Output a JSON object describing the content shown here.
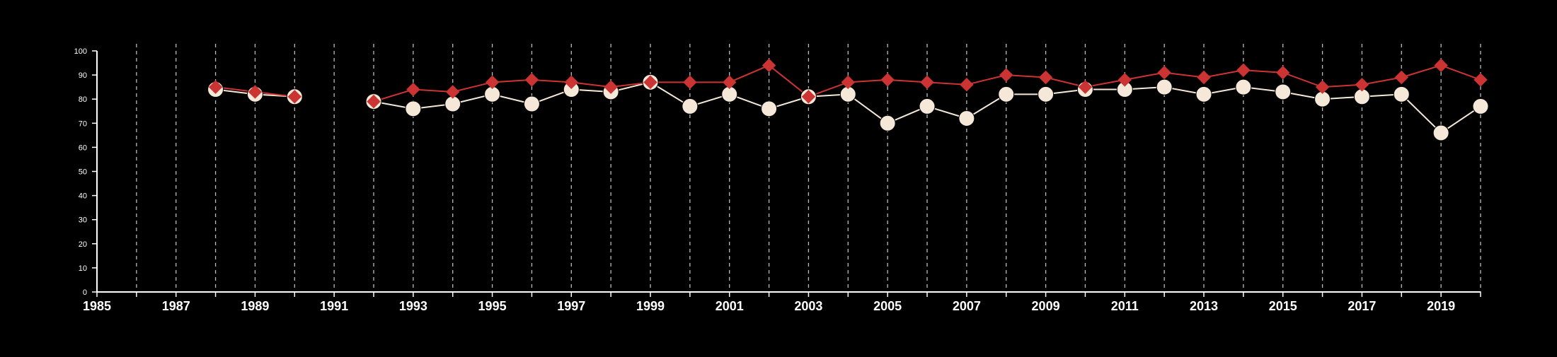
{
  "chart_data": {
    "type": "line",
    "title": "",
    "xlabel": "",
    "ylabel": "",
    "xlim": [
      1985,
      2020
    ],
    "ylim": [
      0,
      100
    ],
    "y_ticks": [
      0,
      10,
      20,
      30,
      40,
      50,
      60,
      70,
      80,
      90,
      100
    ],
    "x_tick_labels": [
      "1985",
      "1987",
      "1989",
      "1991",
      "1993",
      "1995",
      "1997",
      "1999",
      "2001",
      "2003",
      "2005",
      "2007",
      "2009",
      "2011",
      "2013",
      "2015",
      "2017",
      "2019"
    ],
    "grid": "vertical dashed lines at every year",
    "legend": "none",
    "colors": {
      "background": "#000000",
      "axis": "#ffffff",
      "grid": "#bbbbbb",
      "series_red": "#cc3333",
      "series_cream": "#f5e8d8"
    },
    "series": [
      {
        "marker": "circle",
        "color": "#f5e8d8",
        "segments": [
          [
            [
              1988,
              84
            ],
            [
              1989,
              82
            ],
            [
              1990,
              81
            ]
          ],
          [
            [
              1992,
              79
            ],
            [
              1993,
              76
            ],
            [
              1994,
              78
            ],
            [
              1995,
              82
            ],
            [
              1996,
              78
            ],
            [
              1997,
              84
            ],
            [
              1998,
              83
            ],
            [
              1999,
              87
            ],
            [
              2000,
              77
            ],
            [
              2001,
              82
            ],
            [
              2002,
              76
            ],
            [
              2003,
              81
            ],
            [
              2004,
              82
            ],
            [
              2005,
              70
            ],
            [
              2006,
              77
            ],
            [
              2007,
              72
            ],
            [
              2008,
              82
            ],
            [
              2009,
              82
            ],
            [
              2010,
              84
            ],
            [
              2011,
              84
            ],
            [
              2012,
              85
            ],
            [
              2013,
              82
            ],
            [
              2014,
              85
            ],
            [
              2015,
              83
            ],
            [
              2016,
              80
            ],
            [
              2017,
              81
            ],
            [
              2018,
              82
            ],
            [
              2019,
              66
            ],
            [
              2020,
              77
            ]
          ]
        ]
      },
      {
        "marker": "diamond",
        "color": "#cc3333",
        "segments": [
          [
            [
              1988,
              85
            ],
            [
              1989,
              83
            ],
            [
              1990,
              81
            ]
          ],
          [
            [
              1992,
              79
            ],
            [
              1993,
              84
            ],
            [
              1994,
              83
            ],
            [
              1995,
              87
            ],
            [
              1996,
              88
            ],
            [
              1997,
              87
            ],
            [
              1998,
              85
            ],
            [
              1999,
              87
            ],
            [
              2000,
              87
            ],
            [
              2001,
              87
            ],
            [
              2002,
              94
            ],
            [
              2003,
              81
            ],
            [
              2004,
              87
            ],
            [
              2005,
              88
            ],
            [
              2006,
              87
            ],
            [
              2007,
              86
            ],
            [
              2008,
              90
            ],
            [
              2009,
              89
            ],
            [
              2010,
              85
            ],
            [
              2011,
              88
            ],
            [
              2012,
              91
            ],
            [
              2013,
              89
            ],
            [
              2014,
              92
            ],
            [
              2015,
              91
            ],
            [
              2016,
              85
            ],
            [
              2017,
              86
            ],
            [
              2018,
              89
            ],
            [
              2019,
              94
            ],
            [
              2020,
              88
            ]
          ]
        ]
      }
    ]
  }
}
